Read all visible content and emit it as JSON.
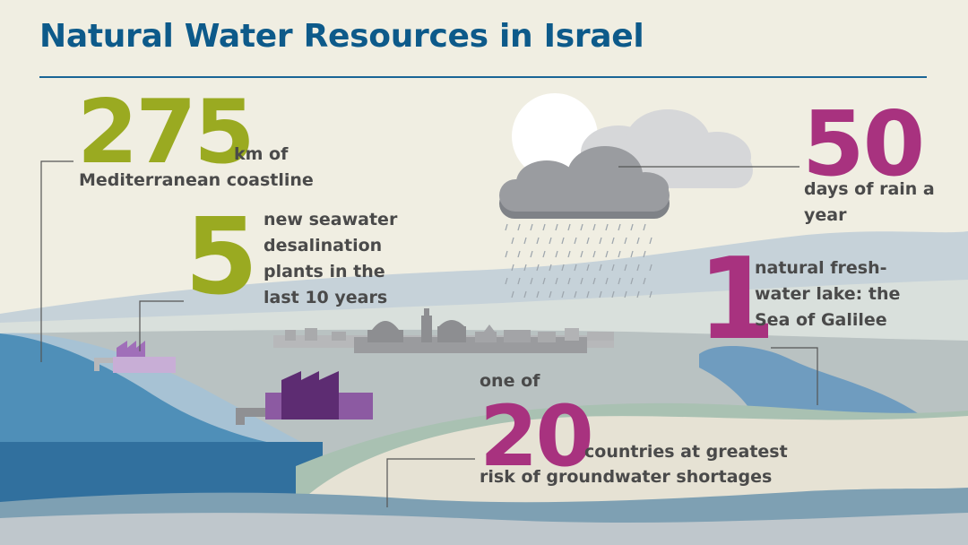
{
  "title": "Natural Water Resources in Israel",
  "colors": {
    "title": "#0d5a8a",
    "green_accent": "#9aaa21",
    "magenta_accent": "#a8327f",
    "label_text": "#4a4a4a",
    "background": "#f0eee2",
    "water": "#4f8fb8",
    "factory": "#6b3a86"
  },
  "stats": {
    "coastline": {
      "value": "275",
      "unit": "km of",
      "description": "Mediterranean coastline"
    },
    "desalination": {
      "value": "5",
      "description": "new seawater desalination plants in the last 10 years"
    },
    "rain": {
      "value": "50",
      "description": "days of rain a year"
    },
    "lake": {
      "value": "1",
      "description": "natural fresh-water lake: the Sea of Galilee"
    },
    "groundwater": {
      "prefix": "one of",
      "value": "20",
      "description_line1": "countries at greatest",
      "description_line2": "risk of groundwater shortages"
    }
  },
  "illustration": {
    "icons": [
      "sun-icon",
      "cloud-icon",
      "rain-icon",
      "factory-icon",
      "city-skyline-icon",
      "lake-icon",
      "sea-icon"
    ]
  }
}
